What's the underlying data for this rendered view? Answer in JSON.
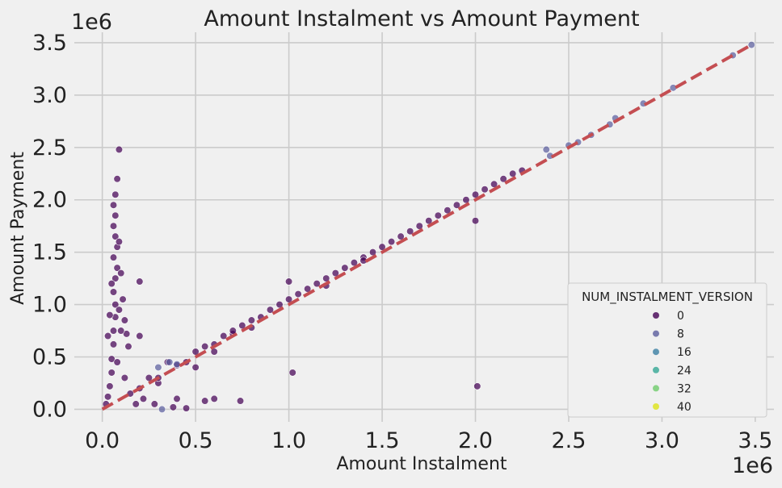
{
  "chart_data": {
    "type": "scatter",
    "title": "Amount Instalment vs Amount Payment",
    "xlabel": "Amount Instalment",
    "ylabel": "Amount Payment",
    "x_scale_label": "1e6",
    "y_scale_label": "1e6",
    "xlim": [
      -0.15,
      3.6
    ],
    "ylim": [
      -0.12,
      3.6
    ],
    "xticks": [
      0.0,
      0.5,
      1.0,
      1.5,
      2.0,
      2.5,
      3.0,
      3.5
    ],
    "yticks": [
      0.0,
      0.5,
      1.0,
      1.5,
      2.0,
      2.5,
      3.0,
      3.5
    ],
    "xtick_labels": [
      "0.0",
      "0.5",
      "1.0",
      "1.5",
      "2.0",
      "2.5",
      "3.0",
      "3.5"
    ],
    "ytick_labels": [
      "0.0",
      "0.5",
      "1.0",
      "1.5",
      "2.0",
      "2.5",
      "3.0",
      "3.5"
    ],
    "grid": true,
    "reference_line": {
      "style": "dashed",
      "color": "#c44e52",
      "from": [
        0.0,
        0.0
      ],
      "to": [
        3.48,
        3.48
      ]
    },
    "legend": {
      "title": "NUM_INSTALMENT_VERSION",
      "placement": "lower-right",
      "entries": [
        {
          "label": "0",
          "color": "#440154"
        },
        {
          "label": "8",
          "color": "#5b5e9e"
        },
        {
          "label": "16",
          "color": "#3b80a4"
        },
        {
          "label": "24",
          "color": "#35a795"
        },
        {
          "label": "32",
          "color": "#6fcc6b"
        },
        {
          "label": "40",
          "color": "#dde318"
        }
      ]
    },
    "series": [
      {
        "name": "0",
        "color": "#440154",
        "points": [
          [
            0.02,
            0.05
          ],
          [
            0.03,
            0.12
          ],
          [
            0.04,
            0.22
          ],
          [
            0.05,
            0.35
          ],
          [
            0.05,
            0.48
          ],
          [
            0.06,
            0.62
          ],
          [
            0.06,
            0.75
          ],
          [
            0.07,
            0.88
          ],
          [
            0.07,
            1.0
          ],
          [
            0.06,
            1.12
          ],
          [
            0.07,
            1.25
          ],
          [
            0.08,
            1.35
          ],
          [
            0.06,
            1.45
          ],
          [
            0.08,
            1.55
          ],
          [
            0.07,
            1.65
          ],
          [
            0.06,
            1.75
          ],
          [
            0.07,
            1.85
          ],
          [
            0.06,
            1.95
          ],
          [
            0.07,
            2.05
          ],
          [
            0.08,
            2.2
          ],
          [
            0.09,
            1.6
          ],
          [
            0.1,
            1.3
          ],
          [
            0.11,
            1.05
          ],
          [
            0.12,
            0.85
          ],
          [
            0.13,
            0.72
          ],
          [
            0.14,
            0.6
          ],
          [
            0.04,
            0.9
          ],
          [
            0.05,
            1.2
          ],
          [
            0.09,
            0.95
          ],
          [
            0.1,
            0.75
          ],
          [
            0.03,
            0.7
          ],
          [
            0.08,
            0.45
          ],
          [
            0.12,
            0.3
          ],
          [
            0.15,
            0.15
          ],
          [
            0.18,
            0.05
          ],
          [
            0.2,
            0.2
          ],
          [
            0.22,
            0.1
          ],
          [
            0.25,
            0.3
          ],
          [
            0.28,
            0.05
          ],
          [
            0.3,
            0.25
          ],
          [
            0.35,
            0.45
          ],
          [
            0.38,
            0.02
          ],
          [
            0.4,
            0.1
          ],
          [
            0.45,
            0.45
          ],
          [
            0.5,
            0.55
          ],
          [
            0.55,
            0.6
          ],
          [
            0.6,
            0.55
          ],
          [
            0.65,
            0.7
          ],
          [
            0.7,
            0.72
          ],
          [
            0.75,
            0.8
          ],
          [
            0.8,
            0.85
          ],
          [
            0.85,
            0.88
          ],
          [
            0.9,
            0.95
          ],
          [
            0.95,
            1.0
          ],
          [
            1.0,
            1.05
          ],
          [
            1.05,
            1.1
          ],
          [
            1.1,
            1.15
          ],
          [
            1.15,
            1.2
          ],
          [
            1.2,
            1.25
          ],
          [
            1.25,
            1.3
          ],
          [
            1.3,
            1.35
          ],
          [
            1.35,
            1.4
          ],
          [
            1.4,
            1.45
          ],
          [
            1.45,
            1.5
          ],
          [
            1.5,
            1.55
          ],
          [
            1.55,
            1.6
          ],
          [
            1.6,
            1.65
          ],
          [
            1.65,
            1.7
          ],
          [
            1.7,
            1.75
          ],
          [
            1.75,
            1.8
          ],
          [
            1.8,
            1.85
          ],
          [
            1.85,
            1.9
          ],
          [
            1.9,
            1.95
          ],
          [
            1.95,
            2.0
          ],
          [
            2.0,
            2.05
          ],
          [
            2.05,
            2.1
          ],
          [
            2.1,
            2.15
          ],
          [
            2.15,
            2.2
          ],
          [
            2.2,
            2.25
          ],
          [
            2.25,
            2.28
          ],
          [
            0.6,
            0.62
          ],
          [
            1.0,
            1.22
          ],
          [
            1.02,
            0.35
          ],
          [
            2.0,
            1.8
          ],
          [
            2.01,
            0.22
          ],
          [
            0.09,
            2.48
          ],
          [
            0.5,
            0.4
          ],
          [
            0.55,
            0.08
          ],
          [
            0.6,
            0.1
          ],
          [
            0.74,
            0.08
          ],
          [
            0.2,
            1.22
          ],
          [
            0.2,
            0.7
          ],
          [
            0.45,
            0.01
          ],
          [
            0.3,
            0.3
          ],
          [
            0.4,
            0.42
          ],
          [
            0.7,
            0.75
          ],
          [
            0.8,
            0.78
          ],
          [
            1.2,
            1.18
          ],
          [
            1.4,
            1.42
          ]
        ]
      },
      {
        "name": "8",
        "color": "#5b5e9e",
        "points": [
          [
            0.32,
            0.0
          ],
          [
            0.36,
            0.45
          ],
          [
            0.4,
            0.43
          ],
          [
            0.3,
            0.4
          ],
          [
            2.4,
            2.42
          ],
          [
            2.5,
            2.52
          ],
          [
            2.62,
            2.62
          ],
          [
            2.75,
            2.78
          ],
          [
            2.9,
            2.92
          ],
          [
            3.06,
            3.07
          ],
          [
            3.38,
            3.38
          ],
          [
            3.48,
            3.48
          ],
          [
            2.55,
            2.55
          ],
          [
            2.72,
            2.72
          ],
          [
            2.38,
            2.48
          ]
        ]
      }
    ]
  }
}
